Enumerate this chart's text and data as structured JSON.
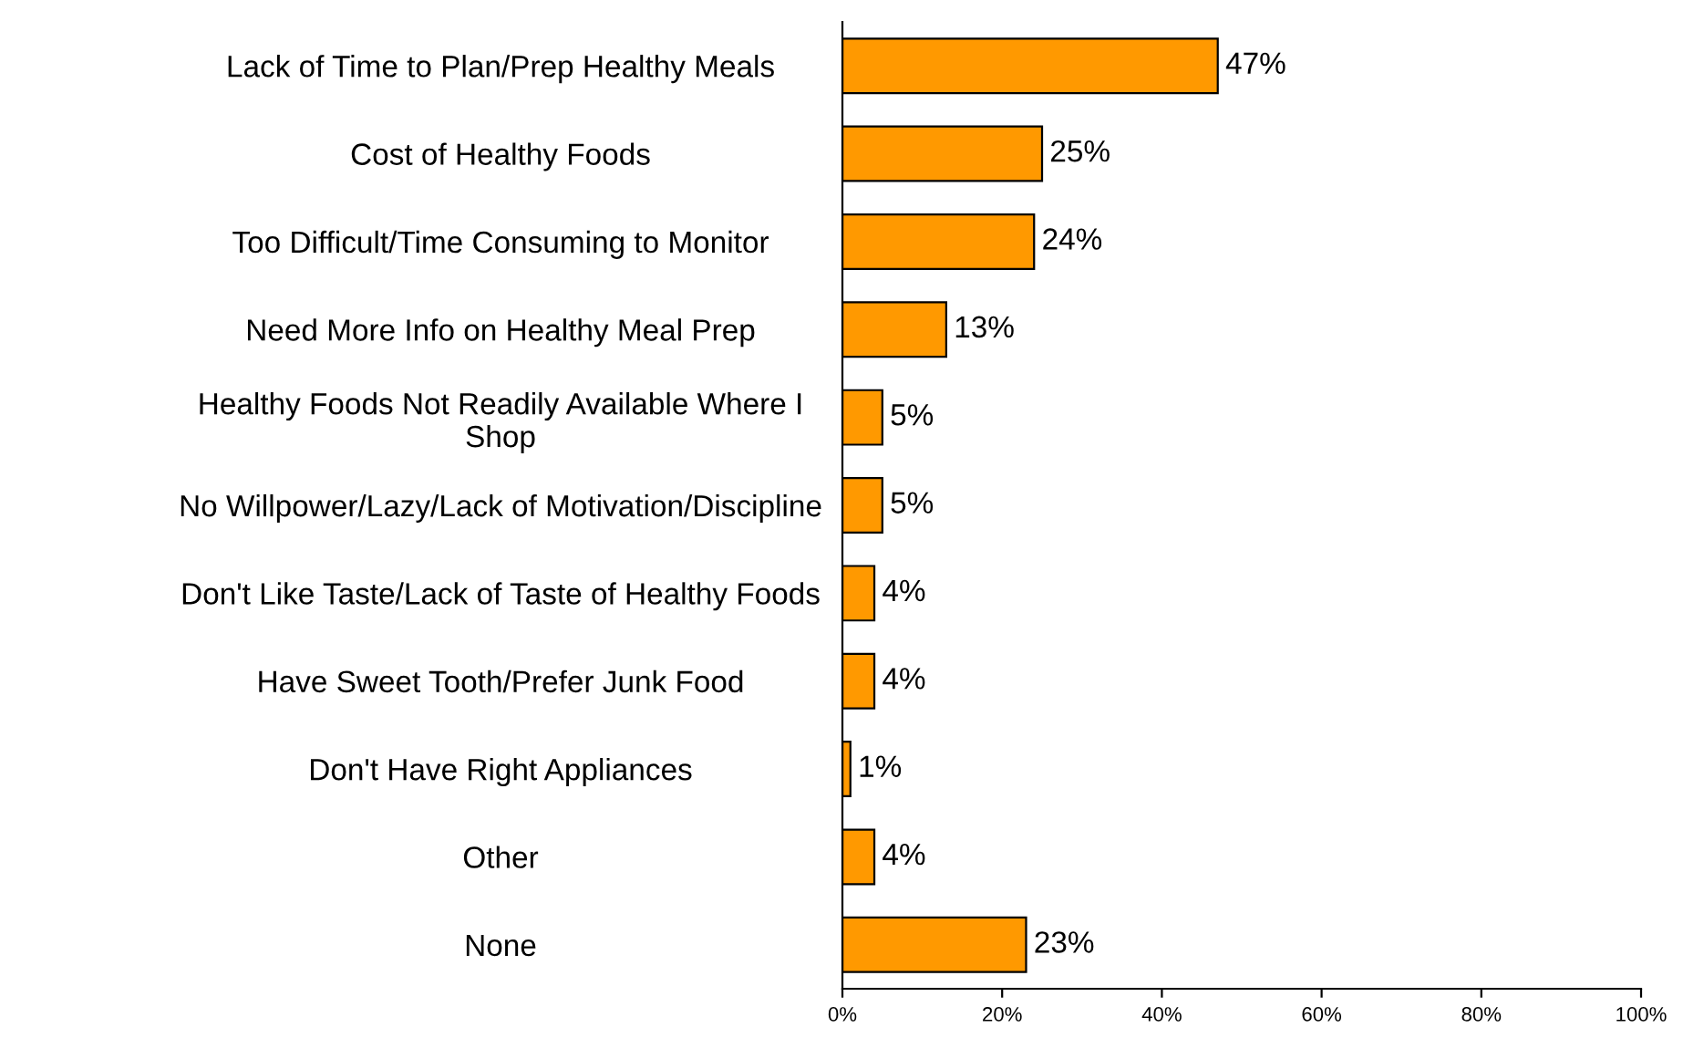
{
  "chart_data": {
    "type": "bar",
    "orientation": "horizontal",
    "categories": [
      "Lack of Time to Plan/Prep Healthy Meals",
      "Cost of Healthy Foods",
      "Too Difficult/Time Consuming to Monitor",
      "Need More Info on Healthy Meal Prep",
      "Healthy Foods Not Readily Available Where I\nShop",
      "No Willpower/Lazy/Lack of Motivation/Discipline",
      "Don't Like Taste/Lack of Taste of Healthy Foods",
      "Have Sweet Tooth/Prefer Junk Food",
      "Don't Have Right Appliances",
      "Other",
      "None"
    ],
    "values": [
      47,
      25,
      24,
      13,
      5,
      5,
      4,
      4,
      1,
      4,
      23
    ],
    "value_labels": [
      "47%",
      "25%",
      "24%",
      "13%",
      "5%",
      "5%",
      "4%",
      "4%",
      "1%",
      "4%",
      "23%"
    ],
    "color": "#ff9900",
    "xlim": [
      0,
      100
    ],
    "xticks": [
      {
        "value": 0,
        "label": "0%"
      },
      {
        "value": 20,
        "label": "20%"
      },
      {
        "value": 40,
        "label": "40%"
      },
      {
        "value": 60,
        "label": "60%"
      },
      {
        "value": 80,
        "label": "80%"
      },
      {
        "value": 100,
        "label": "100%"
      }
    ],
    "grid": false,
    "legend": false
  }
}
